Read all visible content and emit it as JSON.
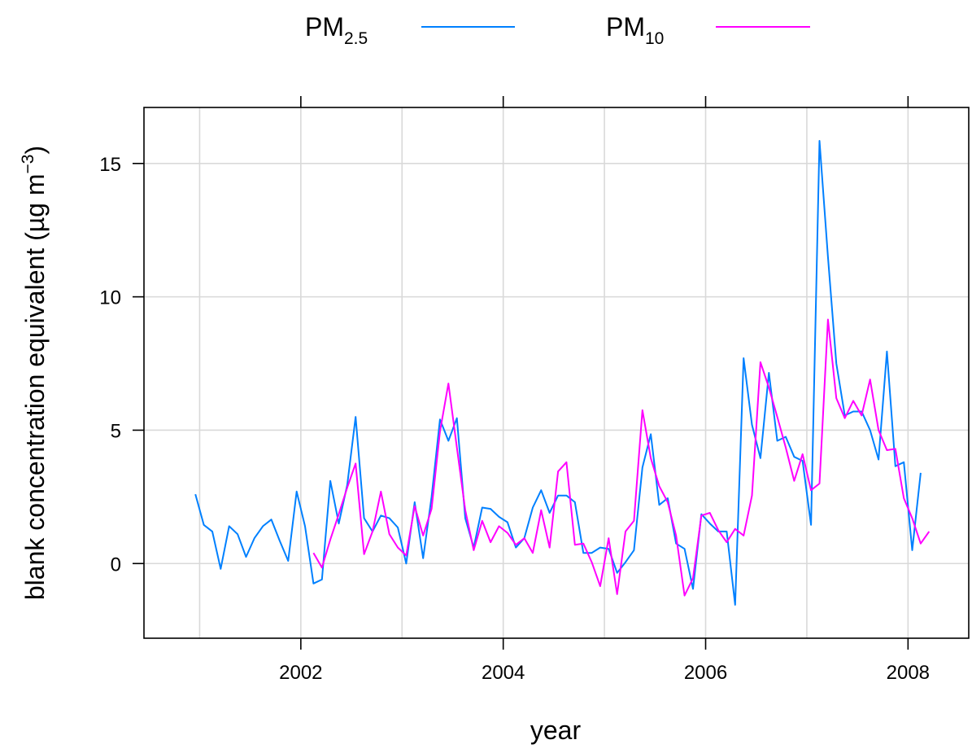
{
  "chart_data": {
    "type": "line",
    "xlabel": "year",
    "ylabel": "blank concentration equivalent (µg m⁻³)",
    "ylabel_parts": {
      "main": "blank concentration equivalent (",
      "mu": "µ",
      "unit": "g m",
      "sup": "−3",
      "close": ")"
    },
    "xlim": [
      2000.45,
      2008.6
    ],
    "ylim": [
      -2.8,
      17.1
    ],
    "x_ticks": [
      2002,
      2004,
      2006,
      2008
    ],
    "x_tick_labels": [
      "2002",
      "2004",
      "2006",
      "2008"
    ],
    "y_ticks": [
      0,
      5,
      10,
      15
    ],
    "y_tick_labels": [
      "0",
      "5",
      "10",
      "15"
    ],
    "grid": true,
    "legend_position": "top",
    "series": [
      {
        "name": "PM2.5",
        "name_parts": {
          "base": "PM",
          "sub": "2.5"
        },
        "color": "#0080FF",
        "points": [
          [
            "2000-12",
            2.6
          ],
          [
            "2001-01",
            1.45
          ],
          [
            "2001-02",
            1.2
          ],
          [
            "2001-03",
            -0.2
          ],
          [
            "2001-04",
            1.4
          ],
          [
            "2001-05",
            1.1
          ],
          [
            "2001-06",
            0.25
          ],
          [
            "2001-07",
            0.95
          ],
          [
            "2001-08",
            1.4
          ],
          [
            "2001-09",
            1.65
          ],
          [
            "2001-10",
            0.85
          ],
          [
            "2001-11",
            0.1
          ],
          [
            "2001-12",
            2.7
          ],
          [
            "2002-01",
            1.4
          ],
          [
            "2002-02",
            -0.75
          ],
          [
            "2002-03",
            -0.6
          ],
          [
            "2002-04",
            3.1
          ],
          [
            "2002-05",
            1.5
          ],
          [
            "2002-06",
            2.95
          ],
          [
            "2002-07",
            5.5
          ],
          [
            "2002-08",
            1.7
          ],
          [
            "2002-09",
            1.2
          ],
          [
            "2002-10",
            1.8
          ],
          [
            "2002-11",
            1.7
          ],
          [
            "2002-12",
            1.35
          ],
          [
            "2003-01",
            0.0
          ],
          [
            "2003-02",
            2.3
          ],
          [
            "2003-03",
            0.2
          ],
          [
            "2003-04",
            2.5
          ],
          [
            "2003-05",
            5.4
          ],
          [
            "2003-06",
            4.6
          ],
          [
            "2003-07",
            5.45
          ],
          [
            "2003-08",
            1.7
          ],
          [
            "2003-09",
            0.6
          ],
          [
            "2003-10",
            2.1
          ],
          [
            "2003-11",
            2.05
          ],
          [
            "2003-12",
            1.75
          ],
          [
            "2004-01",
            1.55
          ],
          [
            "2004-02",
            0.6
          ],
          [
            "2004-03",
            0.95
          ],
          [
            "2004-04",
            2.1
          ],
          [
            "2004-05",
            2.75
          ],
          [
            "2004-06",
            1.9
          ],
          [
            "2004-07",
            2.55
          ],
          [
            "2004-08",
            2.55
          ],
          [
            "2004-09",
            2.3
          ],
          [
            "2004-10",
            0.4
          ],
          [
            "2004-11",
            0.4
          ],
          [
            "2004-12",
            0.6
          ],
          [
            "2005-01",
            0.55
          ],
          [
            "2005-02",
            -0.35
          ],
          [
            "2005-03",
            0.05
          ],
          [
            "2005-04",
            0.5
          ],
          [
            "2005-05",
            3.6
          ],
          [
            "2005-06",
            4.85
          ],
          [
            "2005-07",
            2.2
          ],
          [
            "2005-08",
            2.45
          ],
          [
            "2005-09",
            0.75
          ],
          [
            "2005-10",
            0.55
          ],
          [
            "2005-11",
            -0.95
          ],
          [
            "2005-12",
            1.85
          ],
          [
            "2006-01",
            1.5
          ],
          [
            "2006-02",
            1.2
          ],
          [
            "2006-03",
            1.2
          ],
          [
            "2006-04",
            -1.55
          ],
          [
            "2006-05",
            7.7
          ],
          [
            "2006-06",
            5.2
          ],
          [
            "2006-07",
            3.95
          ],
          [
            "2006-08",
            7.15
          ],
          [
            "2006-09",
            4.6
          ],
          [
            "2006-10",
            4.75
          ],
          [
            "2006-11",
            4.0
          ],
          [
            "2006-12",
            3.85
          ],
          [
            "2007-01",
            1.45
          ],
          [
            "2007-02",
            15.85
          ],
          [
            "2007-03",
            11.5
          ],
          [
            "2007-04",
            7.5
          ],
          [
            "2007-05",
            5.55
          ],
          [
            "2007-06",
            5.7
          ],
          [
            "2007-07",
            5.7
          ],
          [
            "2007-08",
            5.0
          ],
          [
            "2007-09",
            3.9
          ],
          [
            "2007-10",
            7.95
          ],
          [
            "2007-11",
            3.65
          ],
          [
            "2007-12",
            3.8
          ],
          [
            "2008-01",
            0.5
          ],
          [
            "2008-02",
            3.4
          ]
        ]
      },
      {
        "name": "PM10",
        "name_parts": {
          "base": "PM",
          "sub": "10"
        },
        "color": "#FF00FF",
        "points": [
          [
            "2002-02",
            0.4
          ],
          [
            "2002-03",
            -0.15
          ],
          [
            "2002-04",
            0.9
          ],
          [
            "2002-05",
            1.85
          ],
          [
            "2002-06",
            2.85
          ],
          [
            "2002-07",
            3.75
          ],
          [
            "2002-08",
            0.35
          ],
          [
            "2002-09",
            1.2
          ],
          [
            "2002-10",
            2.7
          ],
          [
            "2002-11",
            1.1
          ],
          [
            "2002-12",
            0.6
          ],
          [
            "2003-01",
            0.3
          ],
          [
            "2003-02",
            2.15
          ],
          [
            "2003-03",
            1.05
          ],
          [
            "2003-04",
            2.05
          ],
          [
            "2003-05",
            4.95
          ],
          [
            "2003-06",
            6.75
          ],
          [
            "2003-07",
            4.35
          ],
          [
            "2003-08",
            2.0
          ],
          [
            "2003-09",
            0.5
          ],
          [
            "2003-10",
            1.6
          ],
          [
            "2003-11",
            0.8
          ],
          [
            "2003-12",
            1.4
          ],
          [
            "2004-01",
            1.15
          ],
          [
            "2004-02",
            0.7
          ],
          [
            "2004-03",
            0.95
          ],
          [
            "2004-04",
            0.4
          ],
          [
            "2004-05",
            2.0
          ],
          [
            "2004-06",
            0.6
          ],
          [
            "2004-07",
            3.45
          ],
          [
            "2004-08",
            3.8
          ],
          [
            "2004-09",
            0.7
          ],
          [
            "2004-10",
            0.75
          ],
          [
            "2004-11",
            0.05
          ],
          [
            "2004-12",
            -0.85
          ],
          [
            "2005-01",
            0.95
          ],
          [
            "2005-02",
            -1.15
          ],
          [
            "2005-03",
            1.2
          ],
          [
            "2005-04",
            1.6
          ],
          [
            "2005-05",
            5.75
          ],
          [
            "2005-06",
            3.95
          ],
          [
            "2005-07",
            2.9
          ],
          [
            "2005-08",
            2.3
          ],
          [
            "2005-09",
            1.05
          ],
          [
            "2005-10",
            -1.2
          ],
          [
            "2005-11",
            -0.55
          ],
          [
            "2005-12",
            1.8
          ],
          [
            "2006-01",
            1.9
          ],
          [
            "2006-02",
            1.25
          ],
          [
            "2006-03",
            0.8
          ],
          [
            "2006-04",
            1.3
          ],
          [
            "2006-05",
            1.05
          ],
          [
            "2006-06",
            2.55
          ],
          [
            "2006-07",
            7.55
          ],
          [
            "2006-08",
            6.6
          ],
          [
            "2006-09",
            5.5
          ],
          [
            "2006-10",
            4.35
          ],
          [
            "2006-11",
            3.1
          ],
          [
            "2006-12",
            4.1
          ],
          [
            "2007-01",
            2.75
          ],
          [
            "2007-02",
            3.0
          ],
          [
            "2007-03",
            9.15
          ],
          [
            "2007-04",
            6.2
          ],
          [
            "2007-05",
            5.45
          ],
          [
            "2007-06",
            6.1
          ],
          [
            "2007-07",
            5.55
          ],
          [
            "2007-08",
            6.9
          ],
          [
            "2007-09",
            5.0
          ],
          [
            "2007-10",
            4.25
          ],
          [
            "2007-11",
            4.3
          ],
          [
            "2007-12",
            2.45
          ],
          [
            "2008-01",
            1.7
          ],
          [
            "2008-02",
            0.75
          ],
          [
            "2008-03",
            1.2
          ]
        ]
      }
    ]
  }
}
